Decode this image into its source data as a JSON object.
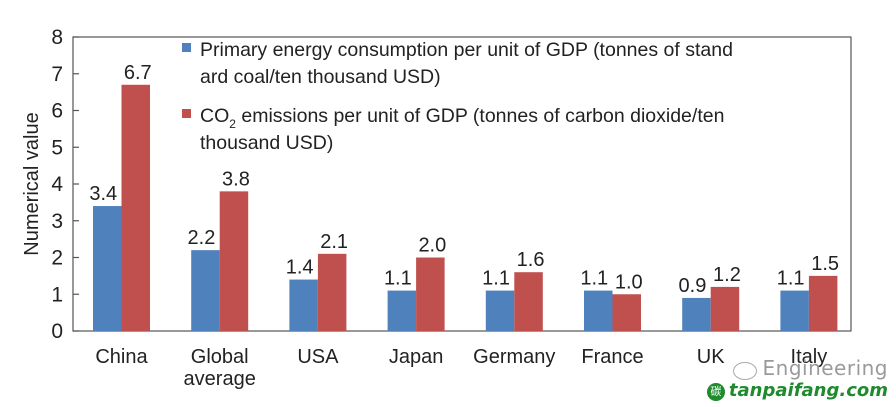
{
  "chart_data": {
    "type": "bar",
    "title": "",
    "xlabel": "",
    "ylabel": "Numerical value",
    "ylim": [
      0,
      8
    ],
    "yticks": [
      0,
      1,
      2,
      3,
      4,
      5,
      6,
      7,
      8
    ],
    "grid": false,
    "legend_position": "top-right",
    "categories": [
      "China",
      "Global\naverage",
      "USA",
      "Japan",
      "Germany",
      "France",
      "UK",
      "Italy"
    ],
    "category_lines": [
      [
        "China"
      ],
      [
        "Global",
        "average"
      ],
      [
        "USA"
      ],
      [
        "Japan"
      ],
      [
        "Germany"
      ],
      [
        "France"
      ],
      [
        "UK"
      ],
      [
        "Italy"
      ]
    ],
    "series": [
      {
        "name": "Primary energy consumption per unit of GDP (tonnes of standard coal/ten thousand USD)",
        "legend_lines": [
          "Primary energy consumption per unit of GDP (tonnes of stand",
          "ard coal/ten thousand USD)"
        ],
        "color": "#4f81bd",
        "values": [
          3.4,
          2.2,
          1.4,
          1.1,
          1.1,
          1.1,
          0.9,
          1.1
        ],
        "labels": [
          "3.4",
          "2.2",
          "1.4",
          "1.1",
          "1.1",
          "1.1",
          "0.9",
          "1.1"
        ]
      },
      {
        "name": "CO2 emissions per unit of GDP (tonnes of carbon dioxide/ten thousand USD)",
        "legend_lines": [
          "CO",
          "2",
          " emissions per unit of GDP (tonnes of carbon dioxide/ten",
          "thousand USD)"
        ],
        "color": "#c0504d",
        "values": [
          6.7,
          3.8,
          2.1,
          2.0,
          1.6,
          1.0,
          1.2,
          1.5
        ],
        "labels": [
          "6.7",
          "3.8",
          "2.1",
          "2.0",
          "1.6",
          "1.0",
          "1.2",
          "1.5"
        ]
      }
    ]
  },
  "watermark": {
    "line1": "Engineering",
    "line2": "tanpaifang.com",
    "logo_glyph": "碳"
  }
}
